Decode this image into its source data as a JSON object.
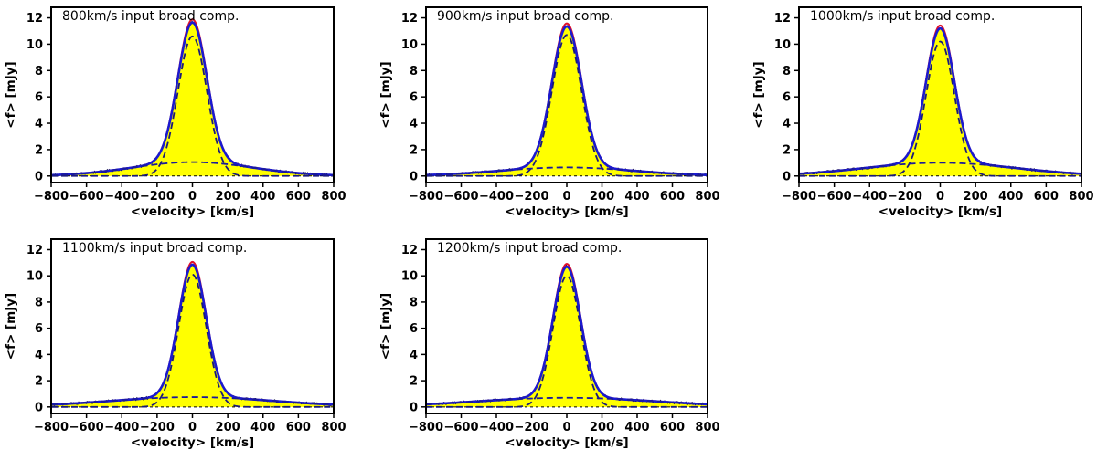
{
  "chart_data": [
    {
      "type": "line",
      "title": "800km/s input broad comp.",
      "xlabel": "<velocity> [km/s]",
      "ylabel": "<f> [mJy]",
      "xlim": [
        -800,
        800
      ],
      "ylim": [
        -0.5,
        12.8
      ],
      "xticks": [
        -800,
        -600,
        -400,
        -200,
        0,
        200,
        400,
        600,
        800
      ],
      "yticks": [
        0,
        2,
        4,
        6,
        8,
        10,
        12
      ],
      "narrow_peak": 10.6,
      "narrow_sigma": 82,
      "broad_peak": 1.05,
      "broad_fwhm": 800,
      "series": [
        {
          "name": "data",
          "color": "#0a0a2a",
          "style": "step-noisy"
        },
        {
          "name": "total model",
          "color": "#e0102a",
          "style": "solid"
        },
        {
          "name": "total fit",
          "color": "#1a1ad0",
          "style": "solid"
        },
        {
          "name": "narrow component",
          "color": "#1a1a7a",
          "style": "dashed"
        },
        {
          "name": "broad component",
          "color": "#1a1a9a",
          "style": "dashed"
        },
        {
          "name": "zero level",
          "color": "#000000",
          "style": "dashed"
        }
      ]
    },
    {
      "type": "line",
      "title": "900km/s input broad comp.",
      "xlabel": "<velocity> [km/s]",
      "ylabel": "<f> [mJy]",
      "xlim": [
        -800,
        800
      ],
      "ylim": [
        -0.5,
        12.8
      ],
      "xticks": [
        -800,
        -600,
        -400,
        -200,
        0,
        200,
        400,
        600,
        800
      ],
      "yticks": [
        0,
        2,
        4,
        6,
        8,
        10,
        12
      ],
      "narrow_peak": 10.7,
      "narrow_sigma": 84,
      "broad_peak": 0.65,
      "broad_fwhm": 900,
      "series": [
        {
          "name": "data",
          "color": "#0a0a2a",
          "style": "step-noisy"
        },
        {
          "name": "total model",
          "color": "#e0102a",
          "style": "solid"
        },
        {
          "name": "total fit",
          "color": "#1a1ad0",
          "style": "solid"
        },
        {
          "name": "narrow component",
          "color": "#1a1a7a",
          "style": "dashed"
        },
        {
          "name": "broad component",
          "color": "#1a1a9a",
          "style": "dashed"
        },
        {
          "name": "zero level",
          "color": "#000000",
          "style": "dashed"
        }
      ]
    },
    {
      "type": "line",
      "title": "1000km/s input broad comp.",
      "xlabel": "<velocity> [km/s]",
      "ylabel": "<f> [mJy]",
      "xlim": [
        -800,
        800
      ],
      "ylim": [
        -0.5,
        12.8
      ],
      "xticks": [
        -800,
        -600,
        -400,
        -200,
        0,
        200,
        400,
        600,
        800
      ],
      "yticks": [
        0,
        2,
        4,
        6,
        8,
        10,
        12
      ],
      "narrow_peak": 10.2,
      "narrow_sigma": 80,
      "broad_peak": 1.0,
      "broad_fwhm": 1000,
      "series": [
        {
          "name": "data",
          "color": "#0a0a2a",
          "style": "step-noisy"
        },
        {
          "name": "total model",
          "color": "#e0102a",
          "style": "solid"
        },
        {
          "name": "total fit",
          "color": "#1a1ad0",
          "style": "solid"
        },
        {
          "name": "narrow component",
          "color": "#1a1a7a",
          "style": "dashed"
        },
        {
          "name": "broad component",
          "color": "#1a1a9a",
          "style": "dashed"
        },
        {
          "name": "zero level",
          "color": "#000000",
          "style": "dashed"
        }
      ]
    },
    {
      "type": "line",
      "title": "1100km/s input broad comp.",
      "xlabel": "<velocity> [km/s]",
      "ylabel": "<f> [mJy]",
      "xlim": [
        -800,
        800
      ],
      "ylim": [
        -0.5,
        12.8
      ],
      "xticks": [
        -800,
        -600,
        -400,
        -200,
        0,
        200,
        400,
        600,
        800
      ],
      "yticks": [
        0,
        2,
        4,
        6,
        8,
        10,
        12
      ],
      "narrow_peak": 10.1,
      "narrow_sigma": 78,
      "broad_peak": 0.75,
      "broad_fwhm": 1100,
      "series": [
        {
          "name": "data",
          "color": "#0a0a2a",
          "style": "step-noisy"
        },
        {
          "name": "total model",
          "color": "#e0102a",
          "style": "solid"
        },
        {
          "name": "total fit",
          "color": "#1a1ad0",
          "style": "solid"
        },
        {
          "name": "narrow component",
          "color": "#1a1a7a",
          "style": "dashed"
        },
        {
          "name": "broad component",
          "color": "#1a1a9a",
          "style": "dashed"
        },
        {
          "name": "zero level",
          "color": "#000000",
          "style": "dashed"
        }
      ]
    },
    {
      "type": "line",
      "title": "1200km/s input broad comp.",
      "xlabel": "<velocity> [km/s]",
      "ylabel": "<f> [mJy]",
      "xlim": [
        -800,
        800
      ],
      "ylim": [
        -0.5,
        12.8
      ],
      "xticks": [
        -800,
        -600,
        -400,
        -200,
        0,
        200,
        400,
        600,
        800
      ],
      "yticks": [
        0,
        2,
        4,
        6,
        8,
        10,
        12
      ],
      "narrow_peak": 10.0,
      "narrow_sigma": 78,
      "broad_peak": 0.7,
      "broad_fwhm": 1200,
      "series": [
        {
          "name": "data",
          "color": "#0a0a2a",
          "style": "step-noisy"
        },
        {
          "name": "total model",
          "color": "#e0102a",
          "style": "solid"
        },
        {
          "name": "total fit",
          "color": "#1a1ad0",
          "style": "solid"
        },
        {
          "name": "narrow component",
          "color": "#1a1a7a",
          "style": "dashed"
        },
        {
          "name": "broad component",
          "color": "#1a1a9a",
          "style": "dashed"
        },
        {
          "name": "zero level",
          "color": "#000000",
          "style": "dashed"
        }
      ]
    }
  ],
  "colors": {
    "fill": "#ffff00",
    "background": "#ffffff",
    "axis": "#000000"
  }
}
